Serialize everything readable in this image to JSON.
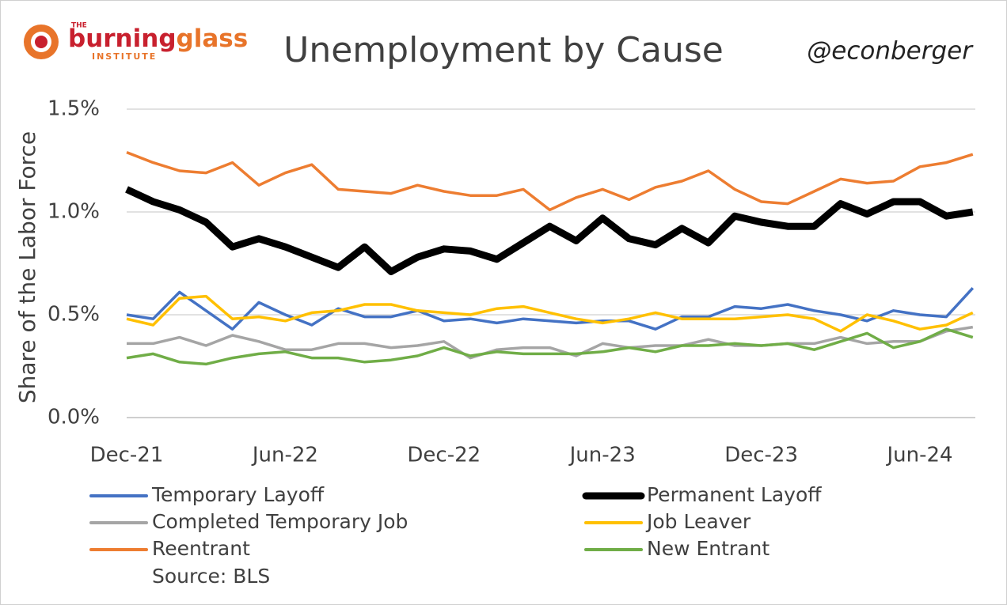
{
  "logo": {
    "top": "THE",
    "word1": "burning",
    "word2": "glass",
    "bottom": "INSTITUTE"
  },
  "handle": "@econberger",
  "source": "Source: BLS",
  "chart_data": {
    "type": "line",
    "title": "Unemployment by Cause",
    "y_label": "Share of the Labor Force",
    "categories": [
      "Dec-21",
      null,
      null,
      null,
      null,
      null,
      "Jun-22",
      null,
      null,
      null,
      null,
      null,
      "Dec-22",
      null,
      null,
      null,
      null,
      null,
      "Jun-23",
      null,
      null,
      null,
      null,
      null,
      "Dec-23",
      null,
      null,
      null,
      null,
      null,
      "Jun-24",
      null,
      null
    ],
    "ylim": [
      0,
      1.5
    ],
    "yticks": [
      {
        "value": 0,
        "label": "0.0%"
      },
      {
        "value": 0.5,
        "label": "0.5%"
      },
      {
        "value": 1.0,
        "label": "1.0%"
      },
      {
        "value": 1.5,
        "label": "1.5%"
      }
    ],
    "grid": true,
    "series": [
      {
        "name": "Temporary Layoff",
        "color": "#4472c4",
        "values": [
          0.5,
          0.48,
          0.61,
          0.52,
          0.43,
          0.56,
          0.5,
          0.45,
          0.53,
          0.49,
          0.49,
          0.52,
          0.47,
          0.48,
          0.46,
          0.48,
          0.47,
          0.46,
          0.47,
          0.47,
          0.43,
          0.49,
          0.49,
          0.54,
          0.53,
          0.55,
          0.52,
          0.5,
          0.47,
          0.52,
          0.5,
          0.49,
          0.63
        ]
      },
      {
        "name": "Permanent Layoff",
        "color": "#000000",
        "values": [
          1.11,
          1.05,
          1.01,
          0.95,
          0.83,
          0.87,
          0.83,
          0.78,
          0.73,
          0.83,
          0.71,
          0.78,
          0.82,
          0.81,
          0.77,
          0.85,
          0.93,
          0.86,
          0.97,
          0.87,
          0.84,
          0.92,
          0.85,
          0.98,
          0.95,
          0.93,
          0.93,
          1.04,
          0.99,
          1.05,
          1.05,
          0.98,
          1.0
        ]
      },
      {
        "name": "Completed Temporary Job",
        "color": "#a5a5a5",
        "values": [
          0.36,
          0.36,
          0.39,
          0.35,
          0.4,
          0.37,
          0.33,
          0.33,
          0.36,
          0.36,
          0.34,
          0.35,
          0.37,
          0.29,
          0.33,
          0.34,
          0.34,
          0.3,
          0.36,
          0.34,
          0.35,
          0.35,
          0.38,
          0.35,
          0.35,
          0.36,
          0.36,
          0.39,
          0.36,
          0.37,
          0.37,
          0.42,
          0.44
        ]
      },
      {
        "name": "Job Leaver",
        "color": "#ffc000",
        "values": [
          0.48,
          0.45,
          0.58,
          0.59,
          0.48,
          0.49,
          0.47,
          0.51,
          0.52,
          0.55,
          0.55,
          0.52,
          0.51,
          0.5,
          0.53,
          0.54,
          0.51,
          0.48,
          0.46,
          0.48,
          0.51,
          0.48,
          0.48,
          0.48,
          0.49,
          0.5,
          0.48,
          0.42,
          0.5,
          0.47,
          0.43,
          0.45,
          0.51
        ]
      },
      {
        "name": "Reentrant",
        "color": "#ed7d31",
        "values": [
          1.29,
          1.24,
          1.2,
          1.19,
          1.24,
          1.13,
          1.19,
          1.23,
          1.11,
          1.1,
          1.09,
          1.13,
          1.1,
          1.08,
          1.08,
          1.11,
          1.01,
          1.07,
          1.11,
          1.06,
          1.12,
          1.15,
          1.2,
          1.11,
          1.05,
          1.04,
          1.1,
          1.16,
          1.14,
          1.15,
          1.22,
          1.24,
          1.28
        ]
      },
      {
        "name": "New Entrant",
        "color": "#70ad47",
        "values": [
          0.29,
          0.31,
          0.27,
          0.26,
          0.29,
          0.31,
          0.32,
          0.29,
          0.29,
          0.27,
          0.28,
          0.3,
          0.34,
          0.3,
          0.32,
          0.31,
          0.31,
          0.31,
          0.32,
          0.34,
          0.32,
          0.35,
          0.35,
          0.36,
          0.35,
          0.36,
          0.33,
          0.37,
          0.41,
          0.34,
          0.37,
          0.43,
          0.39
        ]
      }
    ]
  }
}
